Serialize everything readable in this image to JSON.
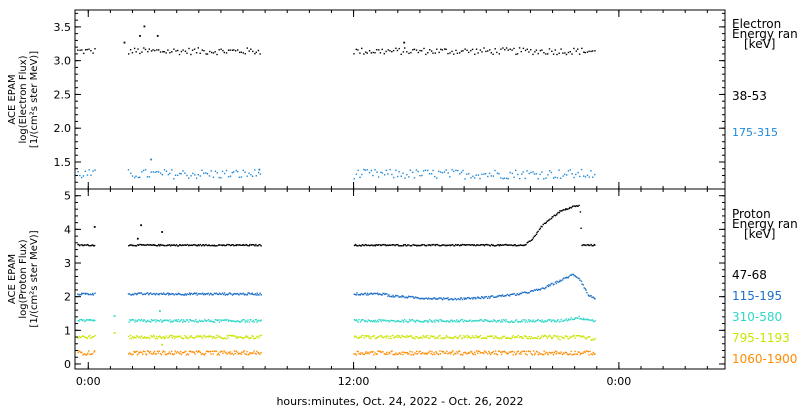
{
  "chart_data": [
    {
      "type": "scatter",
      "ylabel_lines": [
        "ACE EPAM",
        "log(Electron Flux)",
        "[1/(cm²s ster MeV)]"
      ],
      "ylim": [
        1.1,
        3.75
      ],
      "yticks": [
        "1.5",
        "2.0",
        "2.5",
        "3.0",
        "3.5"
      ],
      "ytick_values": [
        1.5,
        2.0,
        2.5,
        3.0,
        3.5
      ],
      "legend_title": [
        "Electron",
        "Energy ran",
        "[keV]"
      ],
      "series": [
        {
          "name": "38-53",
          "color": "#000000",
          "level": 3.15,
          "noise": 0.05,
          "spikes": [
            [
              5.0,
              3.52
            ],
            [
              4.6,
              3.38
            ],
            [
              6.2,
              3.38
            ],
            [
              3.2,
              3.28
            ],
            [
              28.5,
              3.28
            ]
          ]
        },
        {
          "name": "175-315",
          "color": "#1e88d8",
          "level": 1.33,
          "noise": 0.07,
          "spikes": [
            [
              5.6,
              1.55
            ],
            [
              15.4,
              1.4
            ]
          ]
        }
      ]
    },
    {
      "type": "scatter",
      "ylabel_lines": [
        "ACE EPAM",
        "log(Proton Flux)",
        "[1/(cm²s ster MeV)]"
      ],
      "ylim": [
        -0.15,
        5.2
      ],
      "yticks": [
        "0",
        "1",
        "2",
        "3",
        "4",
        "5"
      ],
      "ytick_values": [
        0,
        1,
        2,
        3,
        4,
        5
      ],
      "legend_title": [
        "Proton",
        "Energy ran",
        "[keV]"
      ],
      "series": [
        {
          "name": "47-68",
          "color": "#000000",
          "level": 3.55,
          "noise": 0.02,
          "spikes": [
            [
              0.5,
              4.1
            ],
            [
              4.7,
              4.15
            ],
            [
              6.6,
              3.95
            ],
            [
              4.4,
              3.75
            ]
          ]
        },
        {
          "name": "115-195",
          "color": "#1e6fc8",
          "level": 2.1,
          "noise": 0.03,
          "spikes": []
        },
        {
          "name": "310-580",
          "color": "#2ed8c8",
          "level": 1.3,
          "noise": 0.04,
          "spikes": [
            [
              2.3,
              1.45
            ],
            [
              6.4,
              1.6
            ]
          ]
        },
        {
          "name": "795-1193",
          "color": "#c8e600",
          "level": 0.82,
          "noise": 0.05,
          "spikes": [
            [
              2.3,
              0.95
            ],
            [
              6.6,
              0.6
            ]
          ]
        },
        {
          "name": "1060-1900",
          "color": "#ff8c00",
          "level": 0.35,
          "noise": 0.06,
          "spikes": []
        }
      ]
    }
  ],
  "x_axis": {
    "label": "hours:minutes, Oct. 24, 2022 - Oct. 26, 2022",
    "ticks": [
      "0:00",
      "12:00",
      "0:00"
    ],
    "tick_hours": [
      0,
      24,
      48
    ],
    "range_hours": [
      -1.2,
      57.6
    ],
    "data_segments_hours": [
      [
        -1,
        0.6
      ],
      [
        3.6,
        15.6
      ],
      [
        24,
        45.8
      ]
    ],
    "minor_step_hours": 2
  },
  "proton_event": {
    "series": "47-68",
    "points": [
      [
        39.6,
        3.6
      ],
      [
        40.2,
        3.75
      ],
      [
        40.8,
        4.05
      ],
      [
        41.4,
        4.25
      ],
      [
        42,
        4.4
      ],
      [
        42.6,
        4.55
      ],
      [
        43.2,
        4.62
      ],
      [
        43.8,
        4.7
      ],
      [
        44.4,
        4.72
      ],
      [
        44.6,
        3.6
      ]
    ]
  },
  "proton_bumps": [
    {
      "series": "115-195",
      "points": [
        [
          27,
          2.05
        ],
        [
          30,
          1.98
        ],
        [
          33,
          1.95
        ],
        [
          36,
          2.0
        ],
        [
          39,
          2.1
        ],
        [
          41,
          2.25
        ],
        [
          43,
          2.55
        ],
        [
          43.8,
          2.68
        ],
        [
          44.4,
          2.55
        ],
        [
          45.2,
          2.05
        ],
        [
          45.8,
          1.98
        ]
      ]
    },
    {
      "series": "310-580",
      "points": [
        [
          42.5,
          1.3
        ],
        [
          44.3,
          1.4
        ],
        [
          45.8,
          1.3
        ]
      ]
    },
    {
      "series": "795-1193",
      "points": [
        [
          42.5,
          0.78
        ],
        [
          44.3,
          0.85
        ],
        [
          45.8,
          0.75
        ]
      ]
    }
  ]
}
